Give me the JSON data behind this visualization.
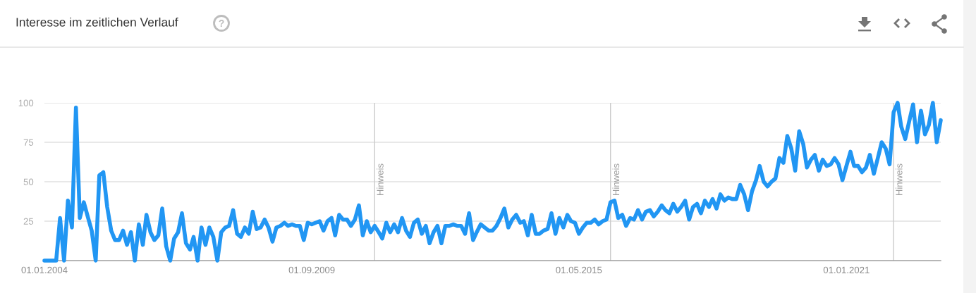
{
  "chart_data": {
    "type": "line",
    "title": "Interesse im zeitlichen Verlauf",
    "x": [
      "2004-01",
      "2004-02",
      "2004-03",
      "2004-04",
      "2004-05",
      "2004-06",
      "2004-07",
      "2004-08",
      "2004-09",
      "2004-10",
      "2004-11",
      "2004-12",
      "2005-01",
      "2005-02",
      "2005-03",
      "2005-04",
      "2005-05",
      "2005-06",
      "2005-07",
      "2005-08",
      "2005-09",
      "2005-10",
      "2005-11",
      "2005-12",
      "2006-01",
      "2006-02",
      "2006-03",
      "2006-04",
      "2006-05",
      "2006-06",
      "2006-07",
      "2006-08",
      "2006-09",
      "2006-10",
      "2006-11",
      "2006-12",
      "2007-01",
      "2007-02",
      "2007-03",
      "2007-04",
      "2007-05",
      "2007-06",
      "2007-07",
      "2007-08",
      "2007-09",
      "2007-10",
      "2007-11",
      "2007-12",
      "2008-01",
      "2008-02",
      "2008-03",
      "2008-04",
      "2008-05",
      "2008-06",
      "2008-07",
      "2008-08",
      "2008-09",
      "2008-10",
      "2008-11",
      "2008-12",
      "2009-01",
      "2009-02",
      "2009-03",
      "2009-04",
      "2009-05",
      "2009-06",
      "2009-07",
      "2009-08",
      "2009-09",
      "2009-10",
      "2009-11",
      "2009-12",
      "2010-01",
      "2010-02",
      "2010-03",
      "2010-04",
      "2010-05",
      "2010-06",
      "2010-07",
      "2010-08",
      "2010-09",
      "2010-10",
      "2010-11",
      "2010-12",
      "2011-01",
      "2011-02",
      "2011-03",
      "2011-04",
      "2011-05",
      "2011-06",
      "2011-07",
      "2011-08",
      "2011-09",
      "2011-10",
      "2011-11",
      "2011-12",
      "2012-01",
      "2012-02",
      "2012-03",
      "2012-04",
      "2012-05",
      "2012-06",
      "2012-07",
      "2012-08",
      "2012-09",
      "2012-10",
      "2012-11",
      "2012-12",
      "2013-01",
      "2013-02",
      "2013-03",
      "2013-04",
      "2013-05",
      "2013-06",
      "2013-07",
      "2013-08",
      "2013-09",
      "2013-10",
      "2013-11",
      "2013-12",
      "2014-01",
      "2014-02",
      "2014-03",
      "2014-04",
      "2014-05",
      "2014-06",
      "2014-07",
      "2014-08",
      "2014-09",
      "2014-10",
      "2014-11",
      "2014-12",
      "2015-01",
      "2015-02",
      "2015-03",
      "2015-04",
      "2015-05",
      "2015-06",
      "2015-07",
      "2015-08",
      "2015-09",
      "2015-10",
      "2015-11",
      "2015-12",
      "2016-01",
      "2016-02",
      "2016-03",
      "2016-04",
      "2016-05",
      "2016-06",
      "2016-07",
      "2016-08",
      "2016-09",
      "2016-10",
      "2016-11",
      "2016-12",
      "2017-01",
      "2017-02",
      "2017-03",
      "2017-04",
      "2017-05",
      "2017-06",
      "2017-07",
      "2017-08",
      "2017-09",
      "2017-10",
      "2017-11",
      "2017-12",
      "2018-01",
      "2018-02",
      "2018-03",
      "2018-04",
      "2018-05",
      "2018-06",
      "2018-07",
      "2018-08",
      "2018-09",
      "2018-10",
      "2018-11",
      "2018-12",
      "2019-01",
      "2019-02",
      "2019-03",
      "2019-04",
      "2019-05",
      "2019-06",
      "2019-07",
      "2019-08",
      "2019-09",
      "2019-10",
      "2019-11",
      "2019-12",
      "2020-01",
      "2020-02",
      "2020-03",
      "2020-04",
      "2020-05",
      "2020-06",
      "2020-07",
      "2020-08",
      "2020-09",
      "2020-10",
      "2020-11",
      "2020-12",
      "2021-01",
      "2021-02",
      "2021-03",
      "2021-04",
      "2021-05",
      "2021-06",
      "2021-07",
      "2021-08",
      "2021-09",
      "2021-10",
      "2021-11",
      "2021-12",
      "2022-01",
      "2022-02",
      "2022-03",
      "2022-04",
      "2022-05",
      "2022-06",
      "2022-07",
      "2022-08",
      "2022-09",
      "2022-10",
      "2022-11",
      "2022-12",
      "2023-01"
    ],
    "series": [
      {
        "color": "#2196f3",
        "values": [
          0,
          0,
          0,
          0,
          27,
          0,
          38,
          21,
          97,
          27,
          37,
          28,
          19,
          0,
          54,
          56,
          34,
          19,
          13,
          13,
          19,
          10,
          18,
          0,
          23,
          10,
          29,
          18,
          13,
          16,
          33,
          9,
          0,
          14,
          18,
          30,
          11,
          7,
          15,
          0,
          21,
          10,
          21,
          15,
          0,
          18,
          21,
          22,
          32,
          17,
          15,
          21,
          17,
          31,
          20,
          21,
          26,
          21,
          12,
          21,
          22,
          24,
          22,
          23,
          22,
          22,
          13,
          24,
          23,
          24,
          25,
          19,
          25,
          27,
          16,
          29,
          26,
          26,
          22,
          26,
          35,
          16,
          25,
          18,
          22,
          18,
          14,
          24,
          18,
          23,
          18,
          27,
          19,
          15,
          24,
          26,
          17,
          22,
          11,
          18,
          22,
          11,
          22,
          22,
          23,
          22,
          22,
          17,
          30,
          13,
          18,
          23,
          21,
          19,
          19,
          22,
          27,
          33,
          21,
          26,
          29,
          24,
          25,
          16,
          29,
          17,
          17,
          19,
          20,
          30,
          17,
          27,
          21,
          29,
          25,
          24,
          17,
          21,
          24,
          24,
          26,
          23,
          25,
          26,
          37,
          38,
          27,
          29,
          22,
          27,
          26,
          32,
          26,
          31,
          32,
          28,
          31,
          35,
          32,
          30,
          36,
          31,
          34,
          38,
          26,
          34,
          36,
          30,
          38,
          34,
          39,
          33,
          42,
          38,
          40,
          39,
          39,
          48,
          42,
          32,
          44,
          51,
          60,
          50,
          47,
          50,
          52,
          65,
          62,
          79,
          71,
          57,
          82,
          74,
          59,
          64,
          67,
          57,
          64,
          60,
          61,
          65,
          61,
          51,
          60,
          69,
          60,
          60,
          56,
          59,
          67,
          55,
          65,
          75,
          71,
          61,
          94,
          100,
          85,
          77,
          88,
          99,
          75,
          95,
          80,
          86,
          100,
          75,
          89
        ]
      }
    ],
    "xlim": [
      "2004-01-01",
      "2023-01-01"
    ],
    "xticks": [
      {
        "value": "2004-01-01",
        "label": "01.01.2004"
      },
      {
        "value": "2009-09-01",
        "label": "01.09.2009"
      },
      {
        "value": "2015-05-01",
        "label": "01.05.2015"
      },
      {
        "value": "2021-01-01",
        "label": "01.01.2021"
      }
    ],
    "ylim": [
      0,
      100
    ],
    "yticks": [
      25,
      50,
      75,
      100
    ],
    "grid": "y",
    "ref_lines": [
      {
        "axis": "x",
        "value": "2011-01-01",
        "label": "Hinweis",
        "color": "#cccccc"
      },
      {
        "axis": "x",
        "value": "2016-01-01",
        "label": "Hinweis",
        "color": "#cccccc"
      },
      {
        "axis": "x",
        "value": "2022-01-01",
        "label": "Hinweis",
        "color": "#cccccc"
      }
    ]
  }
}
